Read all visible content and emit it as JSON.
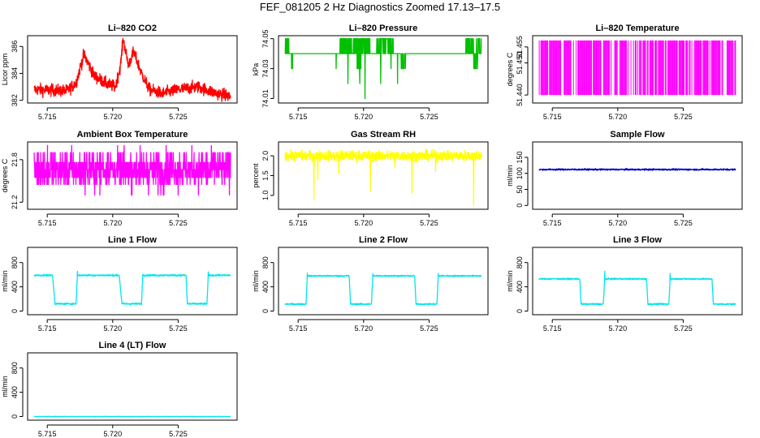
{
  "figure": {
    "title": "FEF_081205  2 Hz Diagnostics Zoomed 17.13–17.5"
  },
  "chart_data": [
    {
      "type": "line",
      "title": "Li–820 CO2",
      "ylabel": "Licor ppm",
      "color": "#ff0000",
      "x_ticks": [
        "5.715",
        "5.720",
        "5.725"
      ],
      "x_tick_values": [
        5.715,
        5.72,
        5.725
      ],
      "y_ticks": [
        "382",
        "384",
        "386"
      ],
      "y_tick_values": [
        382,
        384,
        386
      ],
      "xlim": [
        5.7135,
        5.7295
      ],
      "ylim": [
        381.8,
        386.8
      ],
      "series": [
        {
          "style": "noisy",
          "x": [
            5.714,
            5.7165,
            5.7172,
            5.7178,
            5.7186,
            5.7196,
            5.7202,
            5.7206,
            5.7208,
            5.7212,
            5.7216,
            5.7222,
            5.7228,
            5.7238,
            5.725,
            5.7265,
            5.728,
            5.729
          ],
          "y": [
            382.8,
            382.7,
            383.3,
            385.4,
            383.8,
            383.2,
            383.0,
            384.6,
            386.6,
            384.6,
            385.6,
            384.0,
            382.8,
            382.5,
            382.8,
            383.0,
            382.5,
            382.3
          ],
          "noise": 0.45
        }
      ]
    },
    {
      "type": "line",
      "title": "Li–820 Pressure",
      "ylabel": "kPa",
      "color": "#00c000",
      "x_ticks": [
        "5.715",
        "5.720",
        "5.725"
      ],
      "x_tick_values": [
        5.715,
        5.72,
        5.725
      ],
      "y_ticks": [
        "74.01",
        "74.03",
        "74.05"
      ],
      "y_tick_values": [
        74.01,
        74.03,
        74.05
      ],
      "xlim": [
        5.7135,
        5.7295
      ],
      "ylim": [
        74.007,
        74.052
      ],
      "series": [
        {
          "style": "quantized",
          "x": [
            5.714,
            5.729
          ],
          "y": [
            74.04,
            74.04
          ],
          "levels": [
            74.03,
            74.04,
            74.05
          ],
          "base_level": 74.04,
          "bursts": [
            [
              5.714,
              5.7143,
              74.05
            ],
            [
              5.7145,
              5.7147,
              74.03
            ],
            [
              5.7182,
              5.7191,
              74.05
            ],
            [
              5.7192,
              5.7205,
              74.05
            ],
            [
              5.721,
              5.7223,
              74.05
            ],
            [
              5.7195,
              5.7198,
              74.03
            ],
            [
              5.7228,
              5.7231,
              74.03
            ],
            [
              5.7278,
              5.729,
              74.05
            ],
            [
              5.7284,
              5.7286,
              74.03
            ]
          ],
          "spikes": [
            [
              5.7179,
              74.03
            ],
            [
              5.7188,
              74.02
            ],
            [
              5.7197,
              74.02
            ],
            [
              5.7201,
              74.01
            ],
            [
              5.7213,
              74.02
            ],
            [
              5.7221,
              74.03
            ],
            [
              5.7226,
              74.02
            ],
            [
              5.7232,
              74.03
            ],
            [
              5.7287,
              74.03
            ]
          ]
        }
      ]
    },
    {
      "type": "line",
      "title": "Li–820 Temperature",
      "ylabel": "degrees C",
      "color": "#ff00ff",
      "x_ticks": [
        "5.715",
        "5.720",
        "5.725"
      ],
      "x_tick_values": [
        5.715,
        5.72,
        5.725
      ],
      "y_ticks": [
        "51.440",
        "51.450",
        "51.455"
      ],
      "y_tick_values": [
        51.44,
        51.45,
        51.455
      ],
      "xlim": [
        5.7135,
        5.7295
      ],
      "ylim": [
        51.4375,
        51.4585
      ],
      "series": [
        {
          "style": "toggle",
          "x": [
            5.714,
            5.729
          ],
          "y": [
            51.44,
            51.457
          ],
          "low": 51.44,
          "high": 51.457
        }
      ]
    },
    {
      "type": "line",
      "title": "Ambient Box Temperature",
      "ylabel": "degrees C",
      "color": "#ff00ff",
      "x_ticks": [
        "5.715",
        "5.720",
        "5.725"
      ],
      "x_tick_values": [
        5.715,
        5.72,
        5.725
      ],
      "y_ticks": [
        "21.2",
        "21.8"
      ],
      "y_tick_values": [
        21.2,
        21.8
      ],
      "xlim": [
        5.7135,
        5.7295
      ],
      "ylim": [
        21.1,
        22.05
      ],
      "series": [
        {
          "style": "quantized_noise",
          "x": [
            5.714,
            5.729
          ],
          "y": [
            21.66,
            21.66
          ],
          "levels": [
            21.3,
            21.45,
            21.55,
            21.66,
            21.76,
            21.9,
            22.0
          ],
          "noise": 0.12
        }
      ]
    },
    {
      "type": "line",
      "title": "Gas Stream RH",
      "ylabel": "percent",
      "color": "#ffff00",
      "x_ticks": [
        "5.715",
        "5.720",
        "5.725"
      ],
      "x_tick_values": [
        5.715,
        5.72,
        5.725
      ],
      "y_ticks": [
        "1.0",
        "1.5",
        "2.0"
      ],
      "y_tick_values": [
        1.0,
        1.5,
        2.0
      ],
      "xlim": [
        5.7135,
        5.7295
      ],
      "ylim": [
        0.65,
        2.35
      ],
      "series": [
        {
          "style": "noisy_spikes",
          "x": [
            5.714,
            5.729
          ],
          "y": [
            2.0,
            2.0
          ],
          "noise": 0.13,
          "spikes": [
            [
              5.7162,
              0.9
            ],
            [
              5.7165,
              1.4
            ],
            [
              5.7181,
              1.55
            ],
            [
              5.7205,
              1.1
            ],
            [
              5.7224,
              1.7
            ],
            [
              5.7237,
              1.05
            ],
            [
              5.7255,
              1.6
            ],
            [
              5.7284,
              0.75
            ],
            [
              5.7289,
              1.9
            ]
          ]
        }
      ]
    },
    {
      "type": "line",
      "title": "Sample Flow",
      "ylabel": "ml/min",
      "color": "#0000c8",
      "x_ticks": [
        "5.715",
        "5.720",
        "5.725"
      ],
      "x_tick_values": [
        5.715,
        5.72,
        5.725
      ],
      "y_ticks": [
        "0",
        "50",
        "100",
        "150"
      ],
      "y_tick_values": [
        0,
        50,
        100,
        150
      ],
      "xlim": [
        5.7135,
        5.7295
      ],
      "ylim": [
        -12,
        198
      ],
      "series": [
        {
          "style": "flat",
          "x": [
            5.714,
            5.729
          ],
          "y": [
            112,
            112
          ],
          "noise": 2.5
        }
      ]
    },
    {
      "type": "line",
      "title": "Line 1 Flow",
      "ylabel": "ml/min",
      "color": "#00e5ee",
      "x_ticks": [
        "5.715",
        "5.720",
        "5.725"
      ],
      "x_tick_values": [
        5.715,
        5.72,
        5.725
      ],
      "y_ticks": [
        "0",
        "400",
        "800"
      ],
      "y_tick_values": [
        0,
        400,
        800
      ],
      "xlim": [
        5.7135,
        5.7295
      ],
      "ylim": [
        -60,
        1050
      ],
      "series": [
        {
          "style": "step",
          "high": 590,
          "low": 120,
          "noise": 14,
          "spike": 60,
          "x": [
            5.714,
            5.7154,
            5.7156,
            5.7172,
            5.7173,
            5.7205,
            5.7207,
            5.7222,
            5.7223,
            5.7256,
            5.7257,
            5.7272,
            5.7273,
            5.729
          ],
          "y": [
            590,
            590,
            120,
            120,
            590,
            590,
            120,
            120,
            590,
            590,
            120,
            120,
            590,
            590
          ]
        }
      ]
    },
    {
      "type": "line",
      "title": "Line 2 Flow",
      "ylabel": "ml/min",
      "color": "#00e5ee",
      "x_ticks": [
        "5.715",
        "5.720",
        "5.725"
      ],
      "x_tick_values": [
        5.715,
        5.72,
        5.725
      ],
      "y_ticks": [
        "0",
        "400",
        "800"
      ],
      "y_tick_values": [
        0,
        400,
        800
      ],
      "xlim": [
        5.7135,
        5.7295
      ],
      "ylim": [
        -60,
        1050
      ],
      "series": [
        {
          "style": "step",
          "high": 580,
          "low": 115,
          "noise": 12,
          "spike": 50,
          "x": [
            5.714,
            5.7156,
            5.7157,
            5.7189,
            5.719,
            5.7206,
            5.7207,
            5.7239,
            5.724,
            5.7256,
            5.7257,
            5.729
          ],
          "y": [
            115,
            115,
            580,
            580,
            115,
            115,
            580,
            580,
            115,
            115,
            580,
            580
          ]
        }
      ]
    },
    {
      "type": "line",
      "title": "Line 3 Flow",
      "ylabel": "ml/min",
      "color": "#00e5ee",
      "x_ticks": [
        "5.715",
        "5.720",
        "5.725"
      ],
      "x_tick_values": [
        5.715,
        5.72,
        5.725
      ],
      "y_ticks": [
        "0",
        "400",
        "800"
      ],
      "y_tick_values": [
        0,
        400,
        800
      ],
      "xlim": [
        5.7135,
        5.7295
      ],
      "ylim": [
        -60,
        1050
      ],
      "series": [
        {
          "style": "step",
          "high": 530,
          "low": 115,
          "noise": 12,
          "spike": 120,
          "x": [
            5.714,
            5.7171,
            5.7172,
            5.7189,
            5.719,
            5.7222,
            5.7223,
            5.7239,
            5.724,
            5.7272,
            5.7273,
            5.729
          ],
          "y": [
            530,
            530,
            115,
            115,
            530,
            530,
            115,
            115,
            530,
            530,
            115,
            115
          ]
        }
      ]
    },
    {
      "type": "line",
      "title": "Line 4 (LT) Flow",
      "ylabel": "ml/min",
      "color": "#00e5ee",
      "x_ticks": [
        "5.715",
        "5.720",
        "5.725"
      ],
      "x_tick_values": [
        5.715,
        5.72,
        5.725
      ],
      "y_ticks": [
        "0",
        "400",
        "800"
      ],
      "y_tick_values": [
        0,
        400,
        800
      ],
      "xlim": [
        5.7135,
        5.7295
      ],
      "ylim": [
        -60,
        1050
      ],
      "series": [
        {
          "style": "flat",
          "x": [
            5.714,
            5.729
          ],
          "y": [
            0,
            0
          ],
          "noise": 3
        }
      ]
    }
  ]
}
